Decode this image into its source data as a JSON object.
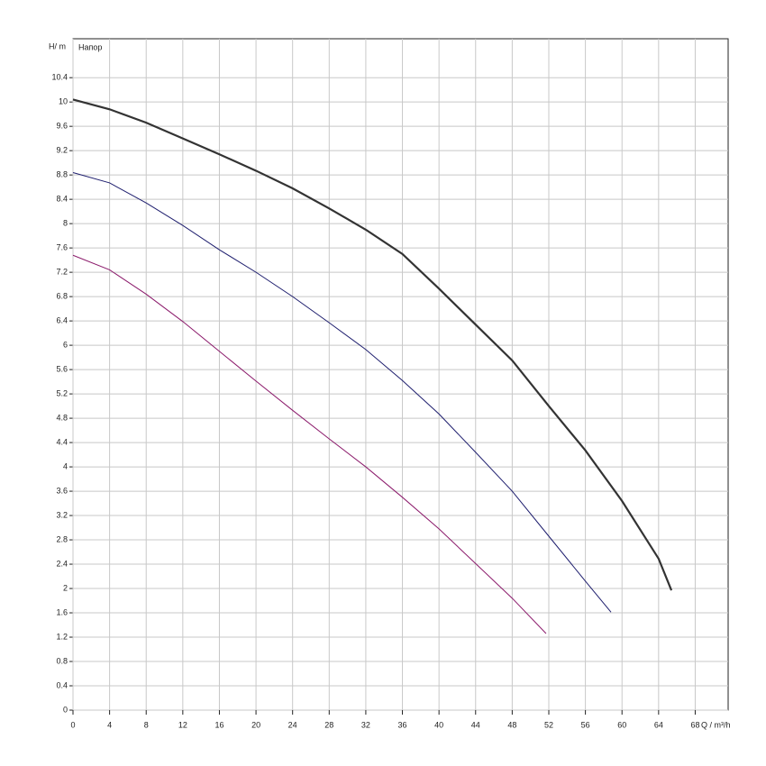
{
  "chart_data": {
    "type": "line",
    "y_label": "H/ m",
    "x_label": "Q / m³/h",
    "annotation": "Напор",
    "xlim": [
      0,
      71.6
    ],
    "ylim": [
      0,
      11.04
    ],
    "xticks": [
      0,
      4,
      8,
      12,
      16,
      20,
      24,
      28,
      32,
      36,
      40,
      44,
      48,
      52,
      56,
      60,
      64,
      68
    ],
    "yticks": [
      0,
      0.4,
      0.8,
      1.2,
      1.6,
      2,
      2.4,
      2.8,
      3.2,
      3.6,
      4,
      4.4,
      4.8,
      5.2,
      5.6,
      6,
      6.4,
      6.8,
      7.2,
      7.6,
      8,
      8.4,
      8.8,
      9.2,
      9.6,
      10,
      10.4
    ],
    "grid": true,
    "series": [
      {
        "color": "#333333",
        "width": 2.2,
        "x": [
          0,
          4,
          8,
          12,
          16,
          20,
          24,
          28,
          32,
          36,
          40,
          44,
          48,
          52,
          56,
          60,
          64,
          65.4
        ],
        "values": [
          10.04,
          9.88,
          9.66,
          9.4,
          9.14,
          8.87,
          8.58,
          8.25,
          7.9,
          7.5,
          6.93,
          6.34,
          5.75,
          5.0,
          4.27,
          3.44,
          2.49,
          1.97
        ]
      },
      {
        "color": "#1e1e6e",
        "width": 1,
        "x": [
          0,
          4,
          8,
          12,
          16,
          20,
          24,
          28,
          32,
          36,
          40,
          44,
          48,
          52,
          56,
          58.8
        ],
        "values": [
          8.84,
          8.67,
          8.34,
          7.97,
          7.57,
          7.2,
          6.8,
          6.37,
          5.93,
          5.42,
          4.87,
          4.24,
          3.6,
          2.86,
          2.12,
          1.61
        ]
      },
      {
        "color": "#8b1a6b",
        "width": 1,
        "x": [
          0,
          4,
          8,
          12,
          16,
          20,
          24,
          28,
          32,
          36,
          40,
          44,
          48,
          51.7
        ],
        "values": [
          7.48,
          7.24,
          6.84,
          6.39,
          5.9,
          5.41,
          4.93,
          4.46,
          4.0,
          3.5,
          2.98,
          2.41,
          1.84,
          1.26
        ]
      }
    ]
  }
}
